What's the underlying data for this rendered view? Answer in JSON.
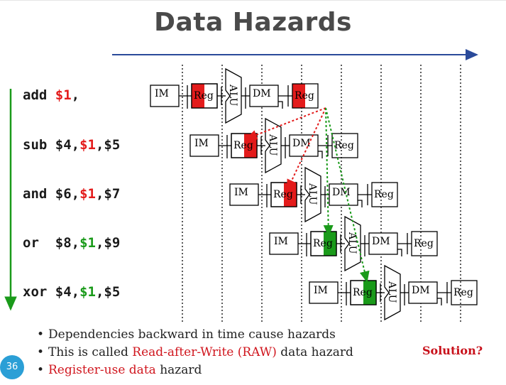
{
  "title": "Data Hazards",
  "colors": {
    "hazard_red": "#e31b1b",
    "forward_green": "#1a9a1a",
    "title_gray": "#4a4a4a",
    "arrow_blue": "#2a4a9a",
    "page_badge": "#2b9fd6"
  },
  "instructions": [
    {
      "op": "add",
      "parts": [
        {
          "t": "add ",
          "c": ""
        },
        {
          "t": "$1",
          "c": "red"
        },
        {
          "t": ",",
          "c": ""
        }
      ]
    },
    {
      "op": "sub",
      "parts": [
        {
          "t": "sub $4,",
          "c": ""
        },
        {
          "t": "$1",
          "c": "red"
        },
        {
          "t": ",$5",
          "c": ""
        }
      ]
    },
    {
      "op": "and",
      "parts": [
        {
          "t": "and $6,",
          "c": ""
        },
        {
          "t": "$1",
          "c": "red"
        },
        {
          "t": ",$7",
          "c": ""
        }
      ]
    },
    {
      "op": "or",
      "parts": [
        {
          "t": "or  $8,",
          "c": ""
        },
        {
          "t": "$1",
          "c": "green"
        },
        {
          "t": ",$9",
          "c": ""
        }
      ]
    },
    {
      "op": "xor",
      "parts": [
        {
          "t": "xor $4,",
          "c": ""
        },
        {
          "t": "$1",
          "c": "green"
        },
        {
          "t": ",$5",
          "c": ""
        }
      ]
    }
  ],
  "stages": {
    "im": "IM",
    "reg": "Reg",
    "alu": "ALU",
    "dm": "DM"
  },
  "register_fill": [
    "red-right",
    "red-left",
    "red-left",
    "green-left",
    "green-left"
  ],
  "bullets": [
    {
      "parts": [
        {
          "t": "Dependencies backward in time cause hazards",
          "c": ""
        }
      ]
    },
    {
      "parts": [
        {
          "t": "This is called ",
          "c": ""
        },
        {
          "t": "Read-after-Write (RAW)",
          "c": "hl"
        },
        {
          "t": " data hazard",
          "c": ""
        }
      ]
    },
    {
      "parts": [
        {
          "t": "Register-use data",
          "c": "hl"
        },
        {
          "t": " hazard",
          "c": ""
        }
      ]
    }
  ],
  "solution": "Solution?",
  "page_number": "36"
}
